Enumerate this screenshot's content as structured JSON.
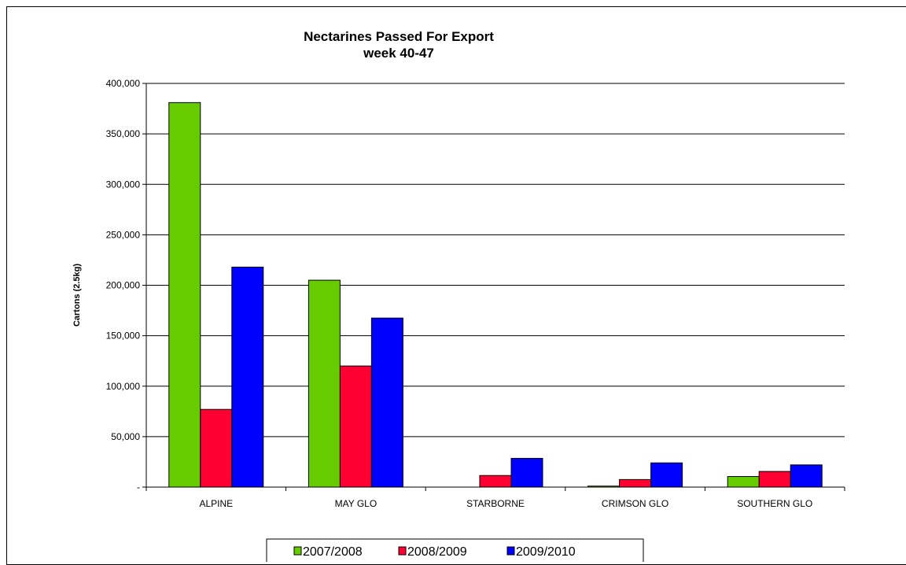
{
  "chart_data": {
    "type": "bar",
    "title": "Nectarines Passed For Export",
    "subtitle": "week 40-47",
    "xlabel": "",
    "ylabel": "Cartons (2.5kg)",
    "ylim": [
      0,
      400000
    ],
    "yticks": [
      0,
      50000,
      100000,
      150000,
      200000,
      250000,
      300000,
      350000,
      400000
    ],
    "ytick_labels": [
      "-",
      "50,000",
      "100,000",
      "150,000",
      "200,000",
      "250,000",
      "300,000",
      "350,000",
      "400,000"
    ],
    "grid": true,
    "legend_position": "bottom",
    "categories": [
      "ALPINE",
      "MAY GLO",
      "STARBORNE",
      "CRIMSON GLO",
      "SOUTHERN GLO"
    ],
    "series": [
      {
        "name": "2007/2008",
        "color": "#66cc00",
        "values": [
          381000,
          205000,
          0,
          1000,
          10500
        ]
      },
      {
        "name": "2008/2009",
        "color": "#ff0033",
        "values": [
          77000,
          120000,
          11500,
          7500,
          15500
        ]
      },
      {
        "name": "2009/2010",
        "color": "#0000ff",
        "values": [
          218000,
          167500,
          28500,
          24000,
          22000
        ]
      }
    ]
  }
}
